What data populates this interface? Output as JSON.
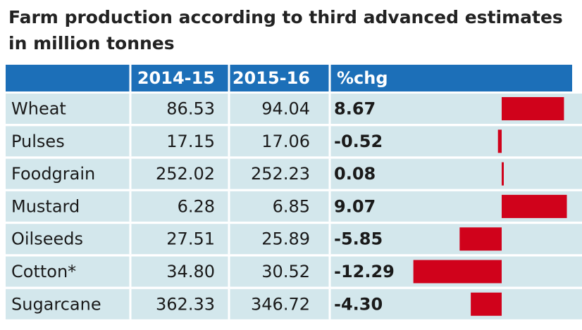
{
  "header": {
    "title": "Farm production according to third advanced estimates",
    "subtitle": "in million tonnes"
  },
  "table": {
    "columns": [
      "2014-15",
      "2015-16",
      "%chg"
    ],
    "rows": [
      [
        "Wheat",
        "86.53",
        "94.04",
        "8.67"
      ],
      [
        "Pulses",
        "17.15",
        "17.06",
        "-0.52"
      ],
      [
        "Foodgrain",
        "252.02",
        "252.23",
        "0.08"
      ],
      [
        "Mustard",
        "6.28",
        "6.85",
        "9.07"
      ],
      [
        "Oilseeds",
        "27.51",
        "25.89",
        "-5.85"
      ],
      [
        "Cotton*",
        "34.80",
        "30.52",
        "-12.29"
      ],
      [
        "Sugarcane",
        "362.33",
        "346.72",
        "-4.30"
      ]
    ],
    "bar_color": "#d0021b"
  }
}
